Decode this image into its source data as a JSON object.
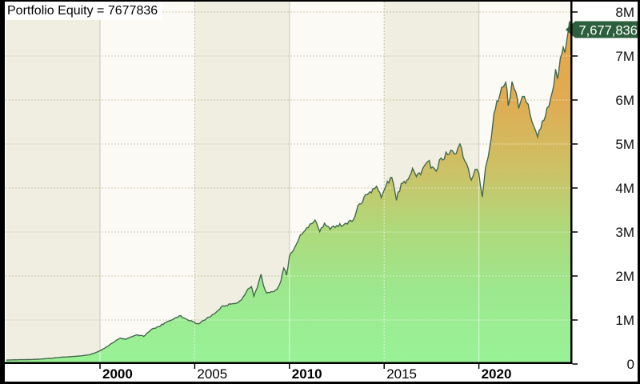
{
  "window": {
    "title_label": "Portfolio Equity = 7677836"
  },
  "chart_data": {
    "type": "area",
    "title": "Portfolio Equity = 7677836",
    "series_name": "Portfolio Equity",
    "last_value": 7677836,
    "last_value_label": "7,677,836",
    "x_range": [
      1995.05,
      2024.85
    ],
    "y_range": [
      0,
      8000000
    ],
    "grid": "on",
    "y_axis": {
      "side": "right",
      "ticks": [
        {
          "label": "8M",
          "value": 8000000
        },
        {
          "label": "7M",
          "value": 7000000
        },
        {
          "label": "6M",
          "value": 6000000
        },
        {
          "label": "5M",
          "value": 5000000
        },
        {
          "label": "4M",
          "value": 4000000
        },
        {
          "label": "3M",
          "value": 3000000
        },
        {
          "label": "2M",
          "value": 2000000
        },
        {
          "label": "1M",
          "value": 1000000
        },
        {
          "label": "0",
          "value": 0
        }
      ]
    },
    "x_axis": {
      "side": "bottom",
      "ticks": [
        {
          "label": "2000",
          "year": 2000,
          "major": true
        },
        {
          "label": "2005",
          "year": 2005,
          "major": false
        },
        {
          "label": "2010",
          "year": 2010,
          "major": true
        },
        {
          "label": "2015",
          "year": 2015,
          "major": false
        },
        {
          "label": "2020",
          "year": 2020,
          "major": true
        }
      ],
      "band_boundaries": [
        1995.05,
        2000,
        2005,
        2010,
        2015,
        2020,
        2024.85
      ]
    },
    "series": [
      {
        "name": "Portfolio Equity",
        "points": [
          [
            1995.05,
            90000
          ],
          [
            1995.6,
            95000
          ],
          [
            1996.2,
            100000
          ],
          [
            1996.8,
            110000
          ],
          [
            1997.4,
            130000
          ],
          [
            1998.0,
            155000
          ],
          [
            1998.6,
            170000
          ],
          [
            1999.0,
            185000
          ],
          [
            1999.5,
            215000
          ],
          [
            2000.0,
            300000
          ],
          [
            2000.4,
            400000
          ],
          [
            2000.8,
            520000
          ],
          [
            2001.1,
            590000
          ],
          [
            2001.35,
            560000
          ],
          [
            2001.7,
            620000
          ],
          [
            2002.0,
            660000
          ],
          [
            2002.3,
            630000
          ],
          [
            2002.7,
            780000
          ],
          [
            2003.1,
            850000
          ],
          [
            2003.5,
            950000
          ],
          [
            2003.9,
            1030000
          ],
          [
            2004.2,
            1100000
          ],
          [
            2004.5,
            1030000
          ],
          [
            2004.9,
            960000
          ],
          [
            2005.2,
            910000
          ],
          [
            2005.6,
            1020000
          ],
          [
            2006.0,
            1130000
          ],
          [
            2006.4,
            1300000
          ],
          [
            2006.9,
            1360000
          ],
          [
            2007.3,
            1400000
          ],
          [
            2007.55,
            1520000
          ],
          [
            2007.8,
            1700000
          ],
          [
            2008.0,
            1760000
          ],
          [
            2008.12,
            1540000
          ],
          [
            2008.3,
            1730000
          ],
          [
            2008.5,
            2040000
          ],
          [
            2008.62,
            1800000
          ],
          [
            2008.8,
            1610000
          ],
          [
            2009.1,
            1640000
          ],
          [
            2009.35,
            1700000
          ],
          [
            2009.55,
            1880000
          ],
          [
            2009.7,
            2180000
          ],
          [
            2009.85,
            2020000
          ],
          [
            2010.0,
            2450000
          ],
          [
            2010.25,
            2620000
          ],
          [
            2010.5,
            2850000
          ],
          [
            2010.75,
            3000000
          ],
          [
            2011.0,
            3100000
          ],
          [
            2011.35,
            3270000
          ],
          [
            2011.6,
            3010000
          ],
          [
            2011.85,
            3200000
          ],
          [
            2012.15,
            3060000
          ],
          [
            2012.5,
            3150000
          ],
          [
            2012.9,
            3180000
          ],
          [
            2013.3,
            3240000
          ],
          [
            2013.7,
            3640000
          ],
          [
            2014.1,
            3850000
          ],
          [
            2014.4,
            3980000
          ],
          [
            2014.6,
            4040000
          ],
          [
            2014.85,
            3780000
          ],
          [
            2015.1,
            4050000
          ],
          [
            2015.4,
            4240000
          ],
          [
            2015.65,
            3720000
          ],
          [
            2015.9,
            4100000
          ],
          [
            2016.2,
            4180000
          ],
          [
            2016.5,
            4450000
          ],
          [
            2016.7,
            4260000
          ],
          [
            2017.0,
            4400000
          ],
          [
            2017.3,
            4600000
          ],
          [
            2017.55,
            4480000
          ],
          [
            2017.75,
            4380000
          ],
          [
            2018.0,
            4680000
          ],
          [
            2018.35,
            4760000
          ],
          [
            2018.6,
            4850000
          ],
          [
            2018.8,
            4780000
          ],
          [
            2019.0,
            5000000
          ],
          [
            2019.25,
            4620000
          ],
          [
            2019.45,
            4430000
          ],
          [
            2019.6,
            4180000
          ],
          [
            2019.8,
            4420000
          ],
          [
            2020.0,
            4330000
          ],
          [
            2020.18,
            3800000
          ],
          [
            2020.35,
            4470000
          ],
          [
            2020.5,
            4720000
          ],
          [
            2020.65,
            5120000
          ],
          [
            2020.8,
            5700000
          ],
          [
            2020.95,
            5980000
          ],
          [
            2021.1,
            6100000
          ],
          [
            2021.3,
            6300000
          ],
          [
            2021.42,
            6400000
          ],
          [
            2021.55,
            5870000
          ],
          [
            2021.75,
            6420000
          ],
          [
            2021.95,
            6180000
          ],
          [
            2022.1,
            5810000
          ],
          [
            2022.3,
            6080000
          ],
          [
            2022.5,
            5950000
          ],
          [
            2022.7,
            5680000
          ],
          [
            2022.9,
            5400000
          ],
          [
            2023.1,
            5160000
          ],
          [
            2023.35,
            5520000
          ],
          [
            2023.6,
            5820000
          ],
          [
            2023.8,
            6060000
          ],
          [
            2023.95,
            6320000
          ],
          [
            2024.05,
            6700000
          ],
          [
            2024.15,
            6480000
          ],
          [
            2024.3,
            6950000
          ],
          [
            2024.45,
            7200000
          ],
          [
            2024.55,
            7080000
          ],
          [
            2024.65,
            7380000
          ],
          [
            2024.73,
            7600000
          ],
          [
            2024.78,
            7790000
          ],
          [
            2024.83,
            7677836
          ]
        ]
      }
    ],
    "colors": {
      "band_light": "#fbfaf4",
      "band_dark": "#f0eee0",
      "grid_h": "#c8c5ae",
      "grid_v_solid": "#d2cfc0",
      "grid_v_dot": "#ccc9b6",
      "grid_on_fill": "rgba(255,255,255,0.55)",
      "line": "#44694d",
      "fill_top": "#e9a646",
      "fill_mid": "#cdc166",
      "fill_bottom": "#99f297",
      "flag_bg": "#2d5f3e",
      "flag_text": "#ffffff",
      "border": "#000000",
      "label": "#111111"
    }
  }
}
